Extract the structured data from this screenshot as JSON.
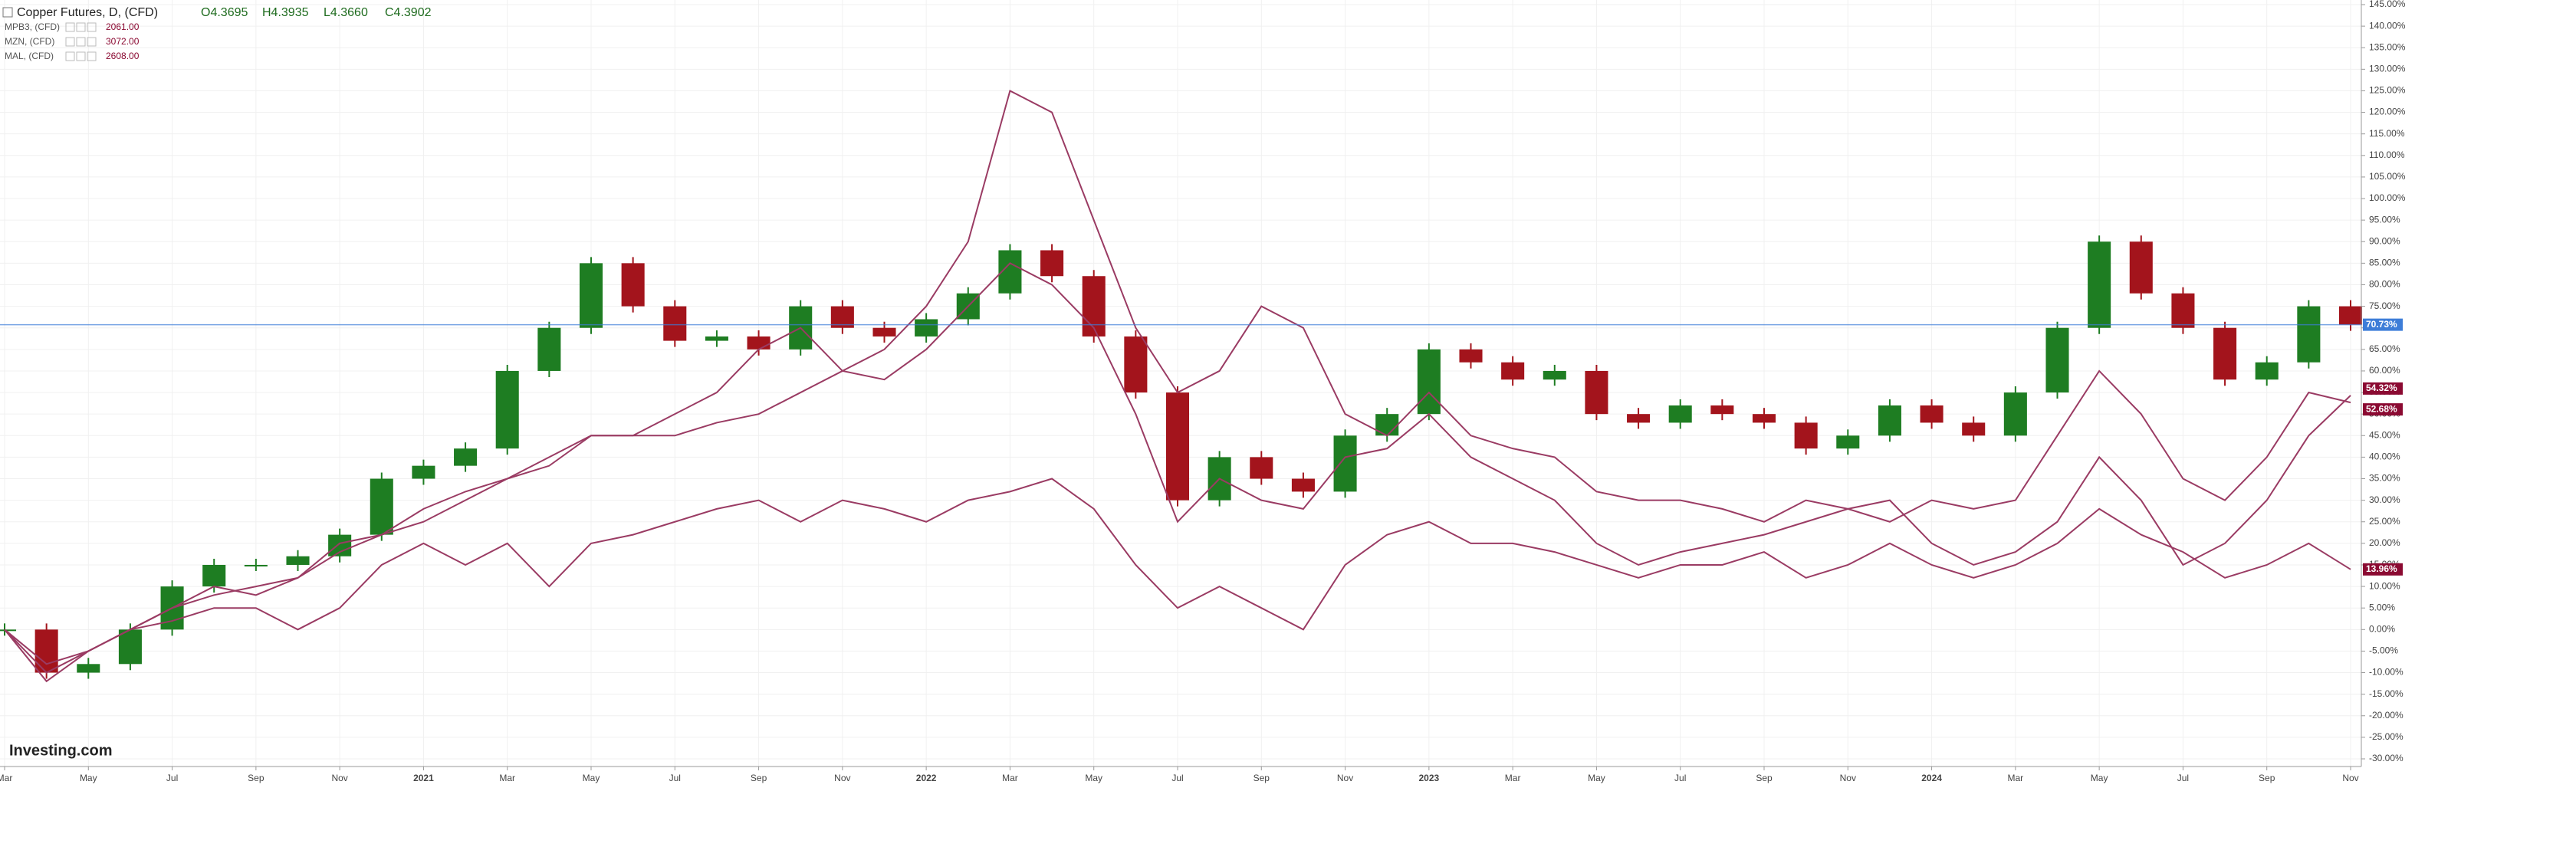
{
  "chart_data": {
    "type": "line",
    "title": "Copper Futures, D, (CFD)",
    "ohlc": [
      "O4.3695",
      "H4.3935",
      "L4.3660",
      "C4.3902"
    ],
    "logo": "Investing.com",
    "grid": true,
    "categories": [
      "Mar",
      null,
      "May",
      null,
      "Jul",
      null,
      "Sep",
      null,
      "Nov",
      null,
      "2021",
      null,
      "Mar",
      null,
      "May",
      null,
      "Jul",
      null,
      "Sep",
      null,
      "Nov",
      null,
      "2022",
      null,
      "Mar",
      null,
      "May",
      null,
      "Jul",
      null,
      "Sep",
      null,
      "Nov",
      null,
      "2023",
      null,
      "Mar",
      null,
      "May",
      null,
      "Jul",
      null,
      "Sep",
      null,
      "Nov",
      null,
      "2024",
      null,
      "Mar",
      null,
      "May",
      null,
      "Jul",
      null,
      "Sep",
      null,
      "Nov"
    ],
    "series": [
      {
        "name": "Copper Futures",
        "style": "candle",
        "color": "#1e7d22",
        "down_color": "#a3141c",
        "values": [
          0,
          -10,
          -8,
          0,
          10,
          15,
          15,
          17,
          22,
          35,
          38,
          42,
          60,
          70,
          85,
          75,
          67,
          68,
          65,
          75,
          70,
          68,
          72,
          78,
          88,
          82,
          68,
          55,
          30,
          40,
          35,
          32,
          45,
          50,
          65,
          62,
          58,
          60,
          50,
          48,
          52,
          50,
          48,
          42,
          45,
          52,
          48,
          45,
          55,
          70,
          90,
          78,
          70,
          58,
          62,
          75,
          70.73
        ]
      },
      {
        "name": "MPB3, (CFD)",
        "legend_value": "2061.00",
        "style": "line",
        "color": "#9a3b63",
        "values": [
          0,
          -10,
          -5,
          0,
          2,
          5,
          5,
          0,
          5,
          15,
          20,
          15,
          20,
          10,
          20,
          22,
          25,
          28,
          30,
          25,
          30,
          28,
          25,
          30,
          32,
          35,
          28,
          15,
          5,
          10,
          5,
          0,
          15,
          22,
          25,
          20,
          20,
          18,
          15,
          12,
          15,
          15,
          18,
          12,
          15,
          20,
          15,
          12,
          15,
          20,
          28,
          22,
          18,
          12,
          15,
          20,
          13.96
        ]
      },
      {
        "name": "MZN, (CFD)",
        "legend_value": "3072.00",
        "style": "line",
        "color": "#9a3b63",
        "values": [
          0,
          -8,
          -5,
          0,
          5,
          8,
          10,
          12,
          18,
          22,
          28,
          32,
          35,
          38,
          45,
          45,
          45,
          48,
          50,
          55,
          60,
          58,
          65,
          75,
          85,
          80,
          70,
          50,
          25,
          35,
          30,
          28,
          40,
          42,
          50,
          40,
          35,
          30,
          20,
          15,
          18,
          20,
          22,
          25,
          28,
          30,
          20,
          15,
          18,
          25,
          40,
          30,
          15,
          20,
          30,
          45,
          54.32
        ]
      },
      {
        "name": "MAL, (CFD)",
        "legend_value": "2608.00",
        "style": "line",
        "color": "#9a3b63",
        "values": [
          0,
          -12,
          -5,
          0,
          5,
          10,
          8,
          12,
          20,
          22,
          25,
          30,
          35,
          40,
          45,
          45,
          50,
          55,
          65,
          70,
          60,
          65,
          75,
          90,
          125,
          120,
          95,
          70,
          55,
          60,
          75,
          70,
          50,
          45,
          55,
          45,
          42,
          40,
          32,
          30,
          30,
          28,
          25,
          30,
          28,
          25,
          30,
          28,
          30,
          45,
          60,
          50,
          35,
          30,
          40,
          55,
          52.68
        ]
      }
    ],
    "markers": [
      {
        "value": 70.73,
        "label": "70.73%",
        "color": "#3d7dd8"
      },
      {
        "value": 54.32,
        "label": "54.32%",
        "color": "#8b0a32"
      },
      {
        "value": 52.68,
        "label": "52.68%",
        "color": "#8b0a32"
      },
      {
        "value": 13.96,
        "label": "13.96%",
        "color": "#8b0a32"
      }
    ],
    "ylim": [
      -30,
      145
    ],
    "yticks": [
      {
        "value": -30,
        "label": "-30.00%"
      },
      {
        "value": -25,
        "label": "-25.00%"
      },
      {
        "value": -20,
        "label": "-20.00%"
      },
      {
        "value": -15,
        "label": "-15.00%"
      },
      {
        "value": -10,
        "label": "-10.00%"
      },
      {
        "value": -5,
        "label": "-5.00%"
      },
      {
        "value": 0,
        "label": "0.00%"
      },
      {
        "value": 5,
        "label": "5.00%"
      },
      {
        "value": 10,
        "label": "10.00%"
      },
      {
        "value": 15,
        "label": "15.00%"
      },
      {
        "value": 20,
        "label": "20.00%"
      },
      {
        "value": 25,
        "label": "25.00%"
      },
      {
        "value": 30,
        "label": "30.00%"
      },
      {
        "value": 35,
        "label": "35.00%"
      },
      {
        "value": 40,
        "label": "40.00%"
      },
      {
        "value": 45,
        "label": "45.00%"
      },
      {
        "value": 50,
        "label": "50.00%"
      },
      {
        "value": 55,
        "label": "55.00%"
      },
      {
        "value": 60,
        "label": "60.00%"
      },
      {
        "value": 65,
        "label": "65.00%"
      },
      {
        "value": 70,
        "label": "70.00%"
      },
      {
        "value": 75,
        "label": "75.00%"
      },
      {
        "value": 80,
        "label": "80.00%"
      },
      {
        "value": 85,
        "label": "85.00%"
      },
      {
        "value": 90,
        "label": "90.00%"
      },
      {
        "value": 95,
        "label": "95.00%"
      },
      {
        "value": 100,
        "label": "100.00%"
      },
      {
        "value": 105,
        "label": "105.00%"
      },
      {
        "value": 110,
        "label": "110.00%"
      },
      {
        "value": 115,
        "label": "115.00%"
      },
      {
        "value": 120,
        "label": "120.00%"
      },
      {
        "value": 125,
        "label": "125.00%"
      },
      {
        "value": 130,
        "label": "130.00%"
      },
      {
        "value": 135,
        "label": "135.00%"
      },
      {
        "value": 140,
        "label": "140.00%"
      },
      {
        "value": 145,
        "label": "145.00%"
      }
    ]
  }
}
